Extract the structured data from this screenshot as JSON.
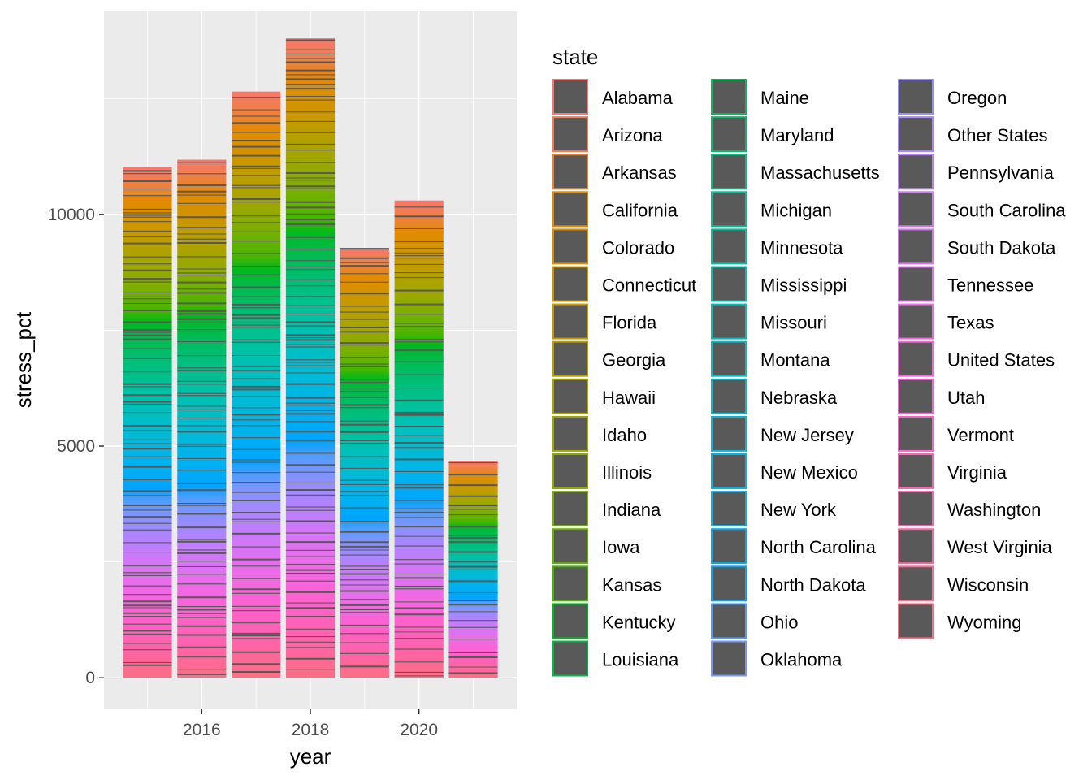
{
  "chart_data": {
    "type": "bar",
    "stacked": true,
    "xlabel": "year",
    "ylabel": "stress_pct",
    "x": [
      2015,
      2016,
      2017,
      2018,
      2019,
      2020,
      2021
    ],
    "x_ticks": [
      2016,
      2018,
      2020
    ],
    "x_tick_labels": [
      "2016",
      "2018",
      "2020"
    ],
    "y_ticks": [
      0,
      5000,
      10000
    ],
    "y_tick_labels": [
      "0",
      "5000",
      "10000"
    ],
    "xlim": [
      2014.2,
      2021.8
    ],
    "ylim": [
      -680,
      14380
    ],
    "totals": [
      11020,
      11180,
      12650,
      13800,
      9270,
      10300,
      4680
    ],
    "grid": true,
    "bar_outline_color": "#595959",
    "panel_background": "#ebebeb",
    "legend": {
      "title": "state",
      "position": "right",
      "columns": 3,
      "entries": [
        "Alabama",
        "Arizona",
        "Arkansas",
        "California",
        "Colorado",
        "Connecticut",
        "Florida",
        "Georgia",
        "Hawaii",
        "Idaho",
        "Illinois",
        "Indiana",
        "Iowa",
        "Kansas",
        "Kentucky",
        "Louisiana",
        "Maine",
        "Maryland",
        "Massachusetts",
        "Michigan",
        "Minnesota",
        "Mississippi",
        "Missouri",
        "Montana",
        "Nebraska",
        "New Jersey",
        "New Mexico",
        "New York",
        "North Carolina",
        "North Dakota",
        "Ohio",
        "Oklahoma",
        "Oregon",
        "Other States",
        "Pennsylvania",
        "South Carolina",
        "South Dakota",
        "Tennessee",
        "Texas",
        "United States",
        "Utah",
        "Vermont",
        "Virginia",
        "Washington",
        "West Virginia",
        "Wisconsin",
        "Wyoming"
      ],
      "colors": [
        "#F8766D",
        "#F27D53",
        "#EB8335",
        "#E38900",
        "#D98F00",
        "#CF9400",
        "#C49A00",
        "#B79F00",
        "#AAA300",
        "#9CA700",
        "#8BAB00",
        "#78AF00",
        "#62B200",
        "#44B500",
        "#00B81F",
        "#00BA42",
        "#00BC59",
        "#00BD6D",
        "#00BF7F",
        "#00C08F",
        "#00C19F",
        "#00C0AE",
        "#00BFBC",
        "#00BDC8",
        "#00BBD4",
        "#00B8DE",
        "#00B4E8",
        "#00B0F0",
        "#00AAF7",
        "#00A4FC",
        "#4D9DFF",
        "#7596FF",
        "#928EFF",
        "#A986FF",
        "#BB7FFD",
        "#CB79F9",
        "#D874F4",
        "#E46FED",
        "#EE6AE5",
        "#F566DC",
        "#FB62D2",
        "#FE61C6",
        "#FF61B9",
        "#FF62AC",
        "#FF659F",
        "#FE6A91",
        "#FB6F83"
      ]
    }
  }
}
